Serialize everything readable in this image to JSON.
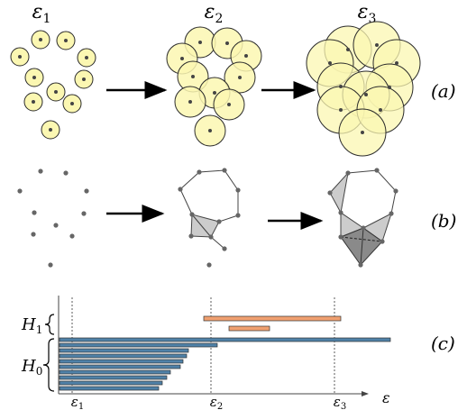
{
  "stage_labels": [
    "ε1",
    "ε2",
    "ε3"
  ],
  "row_labels": [
    "(a)",
    "(b)",
    "(c)"
  ],
  "barcode": {
    "group_labels": [
      "H1",
      "H0"
    ],
    "x_axis_ticks": [
      "ε1",
      "ε2",
      "ε3"
    ],
    "x_axis_label": "ε"
  },
  "colors": {
    "ball_fill": "#fbf7b2",
    "ball_stroke": "#2b2b2b",
    "point": "#555555",
    "triangle_fill": "#cccccc",
    "tetra_fill": "#8a8a8a",
    "h0_bar": "#4f81a8",
    "h1_bar": "#f0a070"
  }
}
